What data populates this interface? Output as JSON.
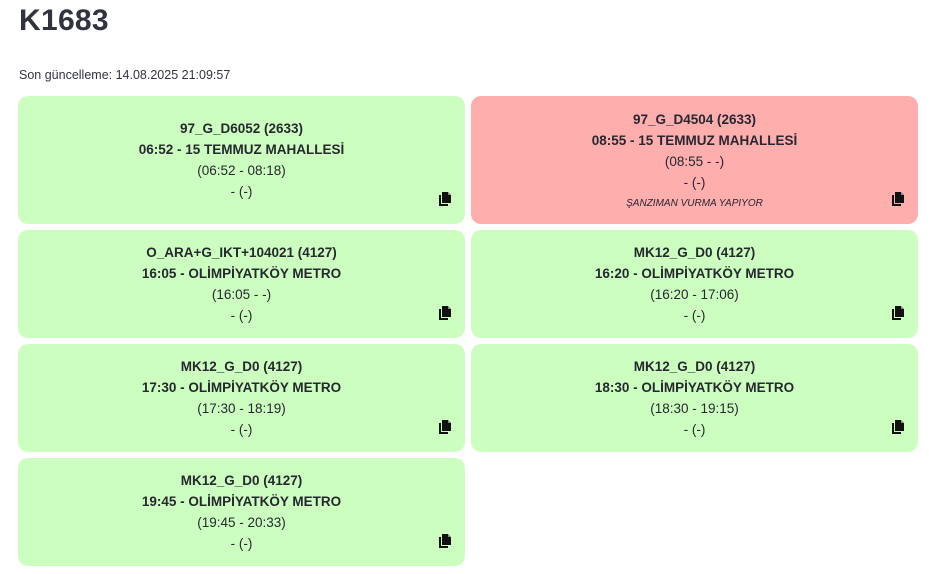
{
  "page": {
    "title": "K1683",
    "last_updated": "Son güncelleme: 14.08.2025 21:09:57"
  },
  "colors": {
    "ok": "#ccffbf",
    "alert": "#ffaeae"
  },
  "cards": [
    {
      "route": "97_G_D6052 (2633)",
      "trip": "06:52 - 15 TEMMUZ MAHALLESİ",
      "times": "(06:52 - 08:18)",
      "status": "- (-)",
      "note": "",
      "state": "ok"
    },
    {
      "route": "97_G_D4504 (2633)",
      "trip": "08:55 - 15 TEMMUZ MAHALLESİ",
      "times": "(08:55 - -)",
      "status": "- (-)",
      "note": "ŞANZIMAN VURMA YAPIYOR",
      "state": "alert"
    },
    {
      "route": "O_ARA+G_IKT+104021 (4127)",
      "trip": "16:05 - OLİMPİYATKÖY METRO",
      "times": "(16:05 - -)",
      "status": "- (-)",
      "note": "",
      "state": "ok"
    },
    {
      "route": "MK12_G_D0 (4127)",
      "trip": "16:20 - OLİMPİYATKÖY METRO",
      "times": "(16:20 - 17:06)",
      "status": "- (-)",
      "note": "",
      "state": "ok"
    },
    {
      "route": "MK12_G_D0 (4127)",
      "trip": "17:30 - OLİMPİYATKÖY METRO",
      "times": "(17:30 - 18:19)",
      "status": "- (-)",
      "note": "",
      "state": "ok"
    },
    {
      "route": "MK12_G_D0 (4127)",
      "trip": "18:30 - OLİMPİYATKÖY METRO",
      "times": "(18:30 - 19:15)",
      "status": "- (-)",
      "note": "",
      "state": "ok"
    },
    {
      "route": "MK12_G_D0 (4127)",
      "trip": "19:45 - OLİMPİYATKÖY METRO",
      "times": "(19:45 - 20:33)",
      "status": "- (-)",
      "note": "",
      "state": "ok"
    }
  ],
  "icons": {
    "copy": "copy-icon"
  }
}
